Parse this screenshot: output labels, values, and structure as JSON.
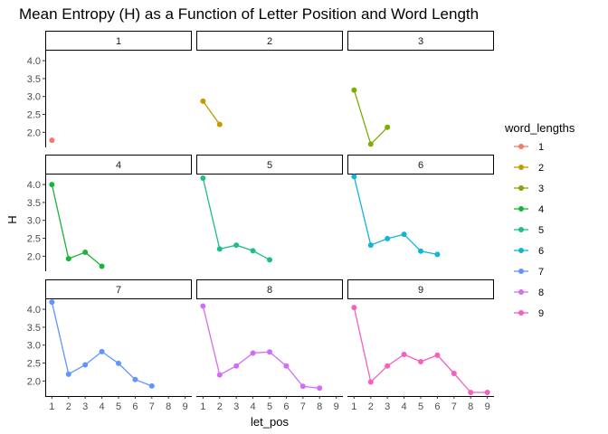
{
  "chart_data": {
    "type": "line",
    "title": "Mean Entropy (H) as a Function of Letter Position and Word Length",
    "xlabel": "let_pos",
    "ylabel": "H",
    "facet_by": "word_lengths",
    "x_ticks": [
      1,
      2,
      3,
      4,
      5,
      6,
      7,
      8,
      9
    ],
    "y_ticks": [
      2.0,
      2.5,
      3.0,
      3.5,
      4.0
    ],
    "y_tick_labels": [
      "2.0",
      "2.5",
      "3.0",
      "3.5",
      "4.0"
    ],
    "x_tick_labels": [
      "1",
      "2",
      "3",
      "4",
      "5",
      "6",
      "7",
      "8",
      "9"
    ],
    "xlim": [
      0.6,
      9.4
    ],
    "ylim": [
      1.58,
      4.28
    ],
    "legend": {
      "title": "word_lengths",
      "position": "right"
    },
    "series": [
      {
        "name": "1",
        "color": "#F8766D",
        "x": [
          1
        ],
        "y": [
          1.78
        ]
      },
      {
        "name": "2",
        "color": "#C49A00",
        "x": [
          1,
          2
        ],
        "y": [
          2.87,
          2.22
        ]
      },
      {
        "name": "3",
        "color": "#7CAE00",
        "x": [
          1,
          2,
          3
        ],
        "y": [
          3.18,
          1.67,
          2.14
        ]
      },
      {
        "name": "4",
        "color": "#1BB33A",
        "x": [
          1,
          2,
          3,
          4
        ],
        "y": [
          4.0,
          1.93,
          2.11,
          1.72
        ]
      },
      {
        "name": "5",
        "color": "#1DBE8A",
        "x": [
          1,
          2,
          3,
          4,
          5
        ],
        "y": [
          4.18,
          2.2,
          2.31,
          2.15,
          1.9
        ]
      },
      {
        "name": "6",
        "color": "#10B5D9",
        "x": [
          1,
          2,
          3,
          4,
          5,
          6
        ],
        "y": [
          4.22,
          2.31,
          2.49,
          2.61,
          2.14,
          2.05
        ]
      },
      {
        "name": "7",
        "color": "#6194FF",
        "x": [
          1,
          2,
          3,
          4,
          5,
          6,
          7
        ],
        "y": [
          4.2,
          2.19,
          2.45,
          2.82,
          2.49,
          2.04,
          1.86
        ]
      },
      {
        "name": "8",
        "color": "#D26EF5",
        "x": [
          1,
          2,
          3,
          4,
          5,
          6,
          7,
          8
        ],
        "y": [
          4.09,
          2.17,
          2.42,
          2.78,
          2.81,
          2.42,
          1.85,
          1.8
        ]
      },
      {
        "name": "9",
        "color": "#F55FC0",
        "x": [
          1,
          2,
          3,
          4,
          5,
          6,
          7,
          8,
          9
        ],
        "y": [
          4.05,
          1.97,
          2.42,
          2.74,
          2.54,
          2.72,
          2.21,
          1.68,
          1.68
        ]
      }
    ]
  }
}
